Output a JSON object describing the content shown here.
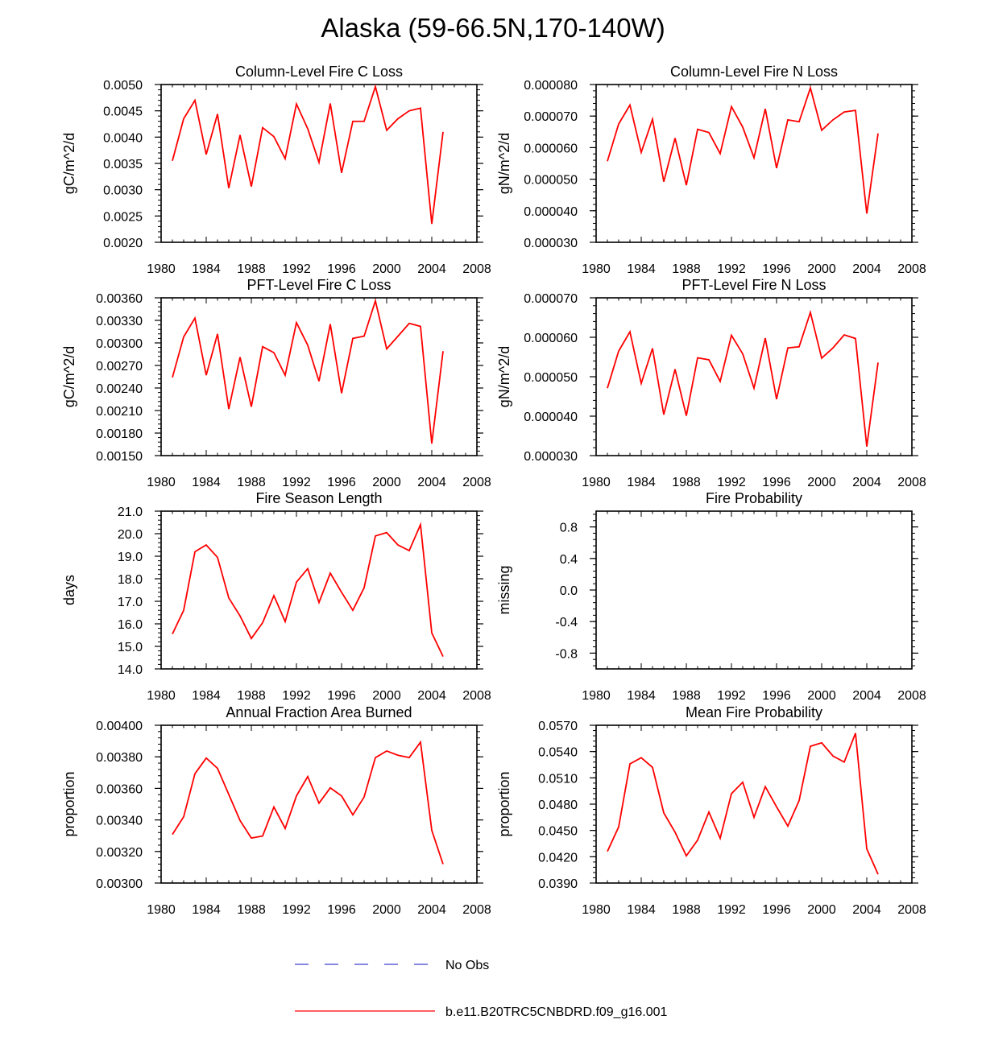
{
  "title": "Alaska (59-66.5N,170-140W)",
  "colors": {
    "model": "#ff0000",
    "obs": "#4040d0",
    "axis": "#000000"
  },
  "legend": {
    "obs_label": "No Obs",
    "model_label": "b.e11.B20TRC5CNBDRD.f09_g16.001"
  },
  "chart_data": [
    {
      "type": "line",
      "title": "Column-Level Fire C Loss",
      "ylabel": "gC/m^2/d",
      "xlim": [
        1980,
        2008
      ],
      "xticks": [
        "1980",
        "1984",
        "1988",
        "1992",
        "1996",
        "2000",
        "2004",
        "2008"
      ],
      "ylim": [
        0.002,
        0.005
      ],
      "yticks": [
        "0.0020",
        "0.0025",
        "0.0030",
        "0.0035",
        "0.0040",
        "0.0045",
        "0.0050"
      ],
      "x": [
        1981,
        1982,
        1983,
        1984,
        1985,
        1986,
        1987,
        1988,
        1989,
        1990,
        1991,
        1992,
        1993,
        1994,
        1995,
        1996,
        1997,
        1998,
        1999,
        2000,
        2001,
        2002,
        2003,
        2004,
        2005
      ],
      "values": [
        0.00355,
        0.00435,
        0.0047,
        0.00367,
        0.00444,
        0.00303,
        0.00404,
        0.00306,
        0.00418,
        0.00401,
        0.00359,
        0.00463,
        0.00416,
        0.00352,
        0.00464,
        0.00332,
        0.0043,
        0.0043,
        0.00496,
        0.00413,
        0.00435,
        0.0045,
        0.00455,
        0.00235,
        0.0041
      ]
    },
    {
      "type": "line",
      "title": "Column-Level Fire N Loss",
      "ylabel": "gN/m^2/d",
      "xlim": [
        1980,
        2008
      ],
      "xticks": [
        "1980",
        "1984",
        "1988",
        "1992",
        "1996",
        "2000",
        "2004",
        "2008"
      ],
      "ylim": [
        3e-05,
        8e-05
      ],
      "yticks": [
        "0.000030",
        "0.000040",
        "0.000050",
        "0.000060",
        "0.000070",
        "0.000080"
      ],
      "x": [
        1981,
        1982,
        1983,
        1984,
        1985,
        1986,
        1987,
        1988,
        1989,
        1990,
        1991,
        1992,
        1993,
        1994,
        1995,
        1996,
        1997,
        1998,
        1999,
        2000,
        2001,
        2002,
        2003,
        2004,
        2005
      ],
      "values": [
        5.57e-05,
        6.75e-05,
        7.35e-05,
        5.85e-05,
        6.9e-05,
        4.92e-05,
        6.3e-05,
        4.81e-05,
        6.58e-05,
        6.48e-05,
        5.81e-05,
        7.3e-05,
        6.65e-05,
        5.68e-05,
        7.23e-05,
        5.35e-05,
        6.88e-05,
        6.82e-05,
        7.89e-05,
        6.55e-05,
        6.88e-05,
        7.13e-05,
        7.18e-05,
        3.91e-05,
        6.45e-05
      ]
    },
    {
      "type": "line",
      "title": "PFT-Level Fire C Loss",
      "ylabel": "gC/m^2/d",
      "xlim": [
        1980,
        2008
      ],
      "xticks": [
        "1980",
        "1984",
        "1988",
        "1992",
        "1996",
        "2000",
        "2004",
        "2008"
      ],
      "ylim": [
        0.0015,
        0.0036
      ],
      "yticks": [
        "0.00150",
        "0.00180",
        "0.00210",
        "0.00240",
        "0.00270",
        "0.00300",
        "0.00330",
        "0.00360"
      ],
      "x": [
        1981,
        1982,
        1983,
        1984,
        1985,
        1986,
        1987,
        1988,
        1989,
        1990,
        1991,
        1992,
        1993,
        1994,
        1995,
        1996,
        1997,
        1998,
        1999,
        2000,
        2001,
        2002,
        2003,
        2004,
        2005
      ],
      "values": [
        0.00254,
        0.00308,
        0.00333,
        0.00257,
        0.00312,
        0.00212,
        0.00281,
        0.00215,
        0.00295,
        0.00287,
        0.00257,
        0.00327,
        0.00297,
        0.00249,
        0.00325,
        0.00233,
        0.00306,
        0.00309,
        0.00356,
        0.00292,
        0.00309,
        0.00326,
        0.00322,
        0.00166,
        0.00289
      ]
    },
    {
      "type": "line",
      "title": "PFT-Level Fire N Loss",
      "ylabel": "gN/m^2/d",
      "xlim": [
        1980,
        2008
      ],
      "xticks": [
        "1980",
        "1984",
        "1988",
        "1992",
        "1996",
        "2000",
        "2004",
        "2008"
      ],
      "ylim": [
        3e-05,
        7e-05
      ],
      "yticks": [
        "0.000030",
        "0.000040",
        "0.000050",
        "0.000060",
        "0.000070"
      ],
      "x": [
        1981,
        1982,
        1983,
        1984,
        1985,
        1986,
        1987,
        1988,
        1989,
        1990,
        1991,
        1992,
        1993,
        1994,
        1995,
        1996,
        1997,
        1998,
        1999,
        2000,
        2001,
        2002,
        2003,
        2004,
        2005
      ],
      "values": [
        4.71e-05,
        5.65e-05,
        6.14e-05,
        4.83e-05,
        5.72e-05,
        4.04e-05,
        5.19e-05,
        4.01e-05,
        5.48e-05,
        5.43e-05,
        4.88e-05,
        6.05e-05,
        5.58e-05,
        4.71e-05,
        5.98e-05,
        4.43e-05,
        5.73e-05,
        5.76e-05,
        6.63e-05,
        5.47e-05,
        5.73e-05,
        6.06e-05,
        5.97e-05,
        3.23e-05,
        5.36e-05
      ]
    },
    {
      "type": "line",
      "title": "Fire Season Length",
      "ylabel": "days",
      "xlim": [
        1980,
        2008
      ],
      "xticks": [
        "1980",
        "1984",
        "1988",
        "1992",
        "1996",
        "2000",
        "2004",
        "2008"
      ],
      "ylim": [
        14.0,
        21.0
      ],
      "yticks": [
        "14.0",
        "15.0",
        "16.0",
        "17.0",
        "18.0",
        "19.0",
        "20.0",
        "21.0"
      ],
      "x": [
        1981,
        1982,
        1983,
        1984,
        1985,
        1986,
        1987,
        1988,
        1989,
        1990,
        1991,
        1992,
        1993,
        1994,
        1995,
        1996,
        1997,
        1998,
        1999,
        2000,
        2001,
        2002,
        2003,
        2004,
        2005
      ],
      "values": [
        15.55,
        16.6,
        19.2,
        19.5,
        18.95,
        17.15,
        16.35,
        15.35,
        16.05,
        17.25,
        16.1,
        17.85,
        18.45,
        16.95,
        18.25,
        17.4,
        16.6,
        17.6,
        19.9,
        20.05,
        19.5,
        19.25,
        20.4,
        15.6,
        14.55
      ]
    },
    {
      "type": "line",
      "title": "Fire Probability",
      "ylabel": "missing",
      "xlim": [
        1980,
        2008
      ],
      "xticks": [
        "1980",
        "1984",
        "1988",
        "1992",
        "1996",
        "2000",
        "2004",
        "2008"
      ],
      "ylim": [
        -1.0,
        1.0
      ],
      "yticks": [
        "-0.8",
        "-0.4",
        "0.0",
        "0.4",
        "0.8"
      ],
      "x": [],
      "values": []
    },
    {
      "type": "line",
      "title": "Annual Fraction Area Burned",
      "ylabel": "proportion",
      "xlim": [
        1980,
        2008
      ],
      "xticks": [
        "1980",
        "1984",
        "1988",
        "1992",
        "1996",
        "2000",
        "2004",
        "2008"
      ],
      "ylim": [
        0.003,
        0.004
      ],
      "yticks": [
        "0.00300",
        "0.00320",
        "0.00340",
        "0.00360",
        "0.00380",
        "0.00400"
      ],
      "x": [
        1981,
        1982,
        1983,
        1984,
        1985,
        1986,
        1987,
        1988,
        1989,
        1990,
        1991,
        1992,
        1993,
        1994,
        1995,
        1996,
        1997,
        1998,
        1999,
        2000,
        2001,
        2002,
        2003,
        2004,
        2005
      ],
      "values": [
        0.003308,
        0.00342,
        0.003693,
        0.003792,
        0.003727,
        0.003562,
        0.003396,
        0.003285,
        0.003298,
        0.003482,
        0.003346,
        0.003552,
        0.003675,
        0.003506,
        0.003603,
        0.003552,
        0.003432,
        0.003545,
        0.003795,
        0.003837,
        0.00381,
        0.003795,
        0.003893,
        0.003334,
        0.00312
      ]
    },
    {
      "type": "line",
      "title": "Mean Fire Probability",
      "ylabel": "proportion",
      "xlim": [
        1980,
        2008
      ],
      "xticks": [
        "1980",
        "1984",
        "1988",
        "1992",
        "1996",
        "2000",
        "2004",
        "2008"
      ],
      "ylim": [
        0.039,
        0.057
      ],
      "yticks": [
        "0.0390",
        "0.0420",
        "0.0450",
        "0.0480",
        "0.0510",
        "0.0540",
        "0.0570"
      ],
      "x": [
        1981,
        1982,
        1983,
        1984,
        1985,
        1986,
        1987,
        1988,
        1989,
        1990,
        1991,
        1992,
        1993,
        1994,
        1995,
        1996,
        1997,
        1998,
        1999,
        2000,
        2001,
        2002,
        2003,
        2004,
        2005
      ],
      "values": [
        0.0426,
        0.0454,
        0.0526,
        0.0533,
        0.0522,
        0.047,
        0.0448,
        0.0421,
        0.0439,
        0.0471,
        0.0441,
        0.0492,
        0.0505,
        0.0465,
        0.05,
        0.0477,
        0.0455,
        0.0484,
        0.0546,
        0.055,
        0.0535,
        0.0528,
        0.0561,
        0.0429,
        0.04
      ]
    }
  ]
}
